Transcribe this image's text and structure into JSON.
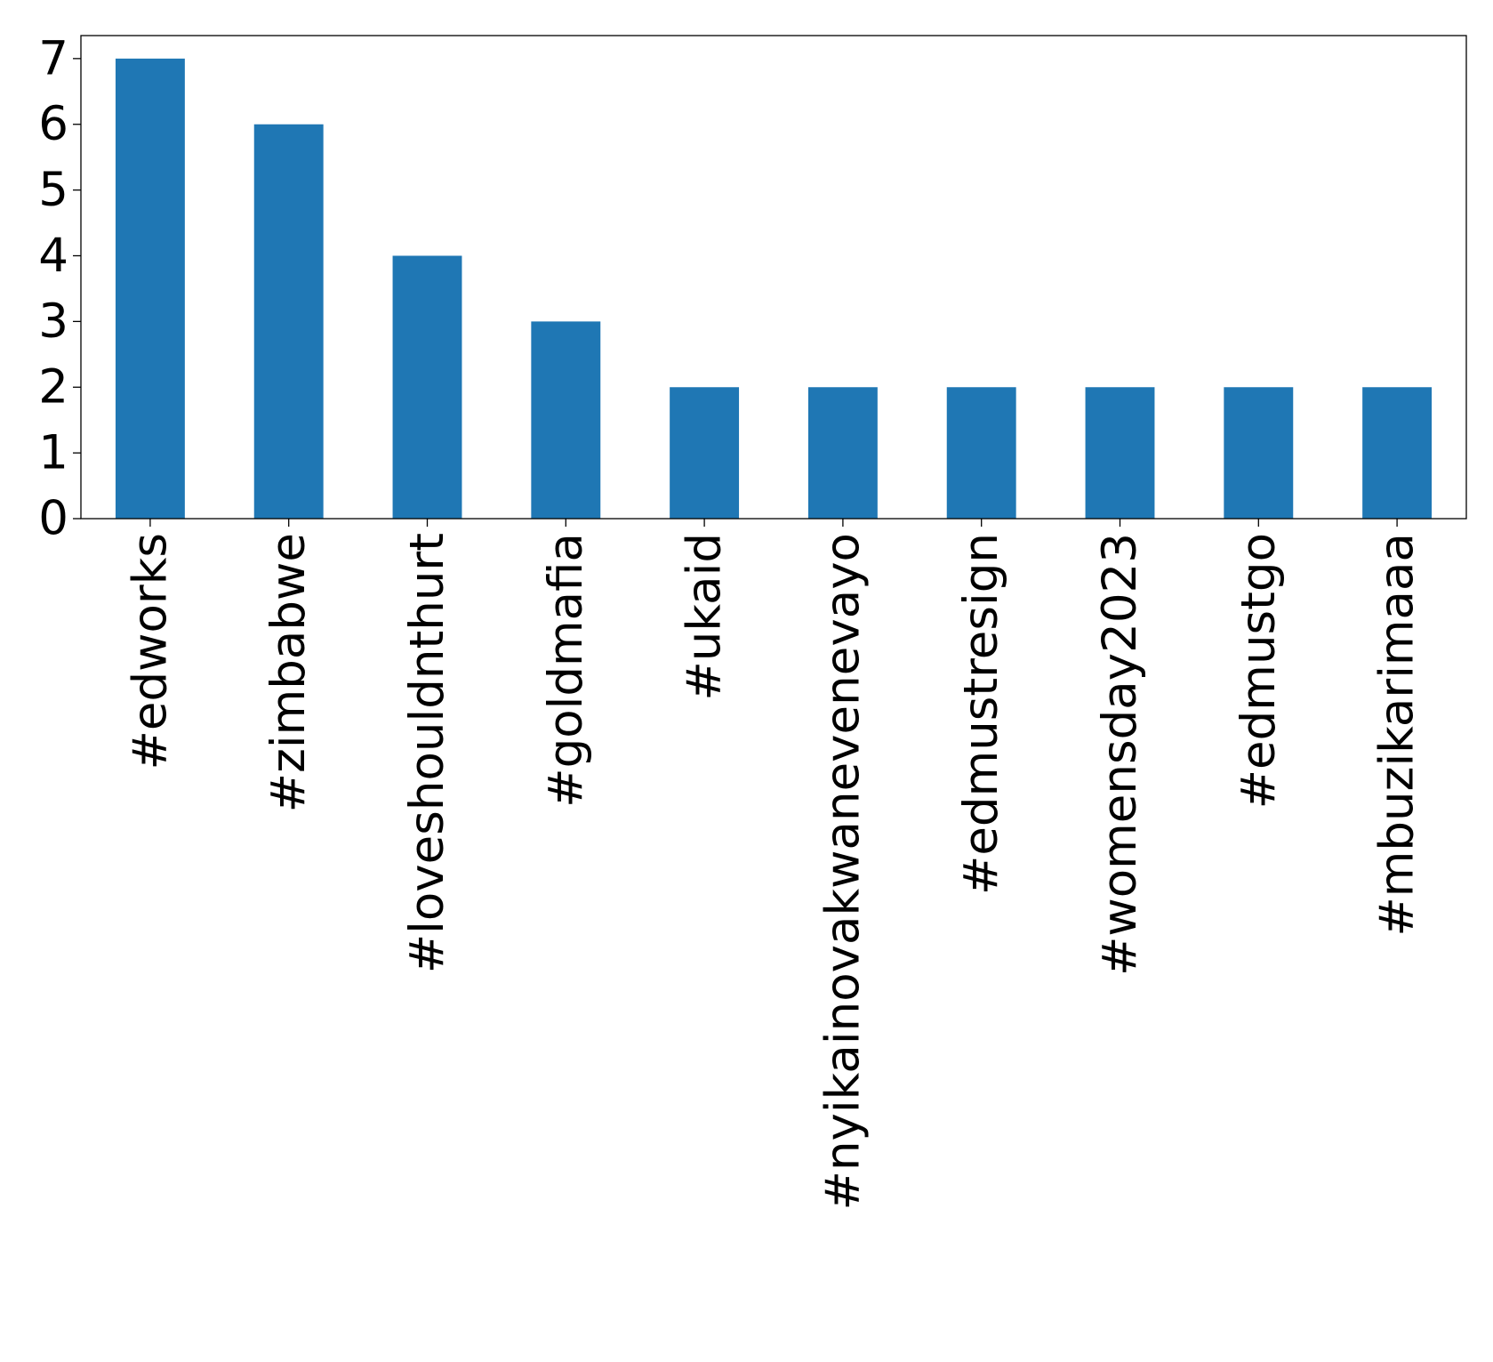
{
  "chart_data": {
    "type": "bar",
    "title": "",
    "xlabel": "",
    "ylabel": "",
    "categories": [
      "#edworks",
      "#zimbabwe",
      "#loveshouldnthurt",
      "#goldmafia",
      "#ukaid",
      "#nyikainovakwanevenevayo",
      "#edmustresign",
      "#womensday2023",
      "#edmustgo",
      "#mbuzikarimaaa"
    ],
    "values": [
      7,
      6,
      4,
      3,
      2,
      2,
      2,
      2,
      2,
      2
    ],
    "ylim": [
      0,
      7.35
    ],
    "yticks": [
      0,
      1,
      2,
      3,
      4,
      5,
      6,
      7
    ],
    "grid": false,
    "legend": "none",
    "bar_color": "#1f77b4"
  }
}
